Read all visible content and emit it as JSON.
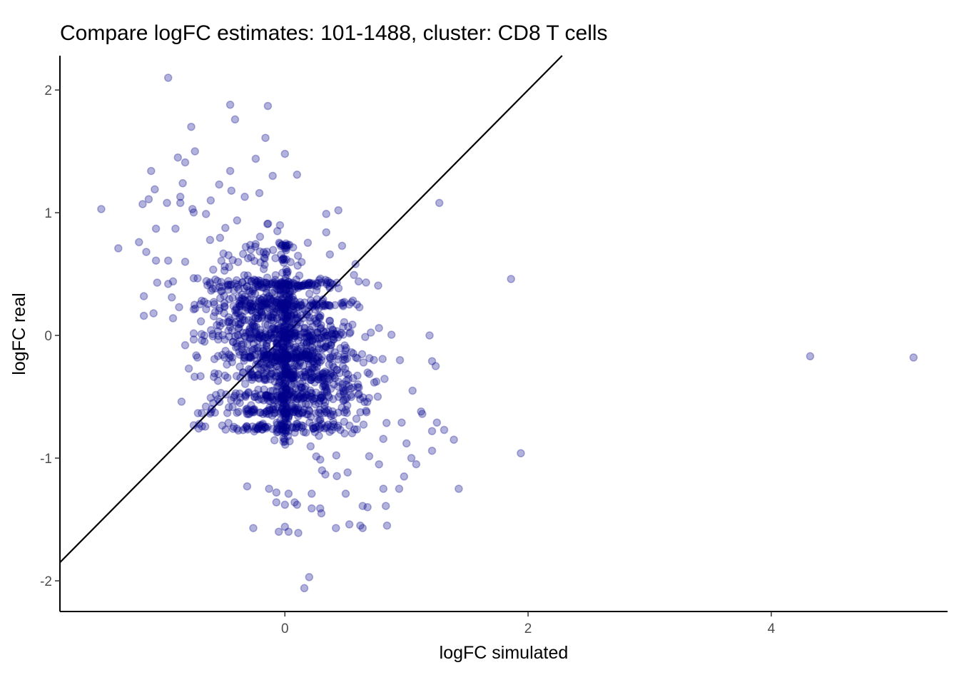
{
  "chart_data": {
    "type": "scatter",
    "title": "Compare logFC estimates: 101-1488, cluster: CD8 T cells",
    "xlabel": "logFC simulated",
    "ylabel": "logFC real",
    "xlim": [
      -1.85,
      5.45
    ],
    "ylim": [
      -2.25,
      2.28
    ],
    "xticks": [
      0,
      2,
      4
    ],
    "yticks": [
      -2,
      -1,
      0,
      1,
      2
    ],
    "xtick_labels": [
      "0",
      "2",
      "4"
    ],
    "ytick_labels": [
      "-2",
      "-1",
      "0",
      "1",
      "2"
    ],
    "grid": false,
    "legend": "none",
    "point_color": "#00008B",
    "reference_line": {
      "slope": 1,
      "intercept": 0
    },
    "series": [
      {
        "points": [
          [
            -0.96,
            2.1
          ],
          [
            -0.45,
            1.88
          ],
          [
            -0.14,
            1.87
          ],
          [
            -0.41,
            1.76
          ],
          [
            -0.77,
            1.7
          ],
          [
            -0.16,
            1.61
          ],
          [
            -0.74,
            1.5
          ],
          [
            0.0,
            1.48
          ],
          [
            -0.88,
            1.45
          ],
          [
            -0.24,
            1.44
          ],
          [
            -0.82,
            1.41
          ],
          [
            -1.1,
            1.34
          ],
          [
            -0.45,
            1.34
          ],
          [
            -0.1,
            1.3
          ],
          [
            0.1,
            1.31
          ],
          [
            -0.84,
            1.24
          ],
          [
            -0.54,
            1.23
          ],
          [
            -1.07,
            1.19
          ],
          [
            -0.44,
            1.18
          ],
          [
            -0.21,
            1.16
          ],
          [
            -0.86,
            1.13
          ],
          [
            -0.33,
            1.13
          ],
          [
            1.27,
            1.08
          ],
          [
            -1.12,
            1.11
          ],
          [
            -0.97,
            1.08
          ],
          [
            -1.17,
            1.07
          ],
          [
            -0.86,
            1.08
          ],
          [
            -0.61,
            1.1
          ],
          [
            -1.51,
            1.03
          ],
          [
            -0.76,
            1.03
          ],
          [
            0.44,
            1.02
          ],
          [
            0.34,
            0.99
          ],
          [
            -1.06,
            0.87
          ],
          [
            -0.9,
            0.87
          ],
          [
            0.34,
            0.84
          ],
          [
            -1.2,
            0.76
          ],
          [
            -1.37,
            0.71
          ],
          [
            -1.14,
            0.68
          ],
          [
            0.47,
            0.73
          ],
          [
            0.37,
            0.66
          ],
          [
            -1.06,
            0.61
          ],
          [
            -0.96,
            0.61
          ],
          [
            -0.82,
            0.6
          ],
          [
            1.86,
            0.46
          ],
          [
            -1.05,
            0.43
          ],
          [
            -0.96,
            0.42
          ],
          [
            -0.92,
            0.44
          ],
          [
            -1.16,
            0.32
          ],
          [
            -0.93,
            0.31
          ],
          [
            -0.87,
            0.23
          ],
          [
            -1.08,
            0.18
          ],
          [
            -1.16,
            0.16
          ],
          [
            -0.92,
            0.14
          ],
          [
            1.19,
            0.0
          ],
          [
            4.32,
            -0.17
          ],
          [
            5.17,
            -0.18
          ],
          [
            1.21,
            -0.21
          ],
          [
            1.24,
            -0.25
          ],
          [
            1.05,
            -0.45
          ],
          [
            1.12,
            -0.62
          ],
          [
            1.13,
            -0.64
          ],
          [
            1.25,
            -0.71
          ],
          [
            0.96,
            -0.71
          ],
          [
            1.21,
            -0.78
          ],
          [
            1.31,
            -0.77
          ],
          [
            1.39,
            -0.85
          ],
          [
            1.21,
            -0.94
          ],
          [
            1.94,
            -0.96
          ],
          [
            1.0,
            -0.88
          ],
          [
            1.04,
            -1.0
          ],
          [
            1.08,
            -1.05
          ],
          [
            0.98,
            -1.15
          ],
          [
            1.43,
            -1.25
          ],
          [
            0.94,
            -1.25
          ],
          [
            0.81,
            -1.25
          ],
          [
            -0.31,
            -1.23
          ],
          [
            -0.13,
            -1.25
          ],
          [
            -0.07,
            -1.28
          ],
          [
            0.03,
            -1.29
          ],
          [
            0.22,
            -1.29
          ],
          [
            0.5,
            -1.29
          ],
          [
            0.08,
            -1.36
          ],
          [
            -0.07,
            -1.36
          ],
          [
            0.1,
            -1.38
          ],
          [
            0.22,
            -1.41
          ],
          [
            0.29,
            -1.41
          ],
          [
            0.64,
            -1.39
          ],
          [
            0.68,
            -1.4
          ],
          [
            0.83,
            -1.39
          ],
          [
            0.3,
            -1.45
          ],
          [
            0.0,
            -1.38
          ],
          [
            -0.26,
            -1.57
          ],
          [
            0.0,
            -1.56
          ],
          [
            0.42,
            -1.57
          ],
          [
            0.53,
            -1.54
          ],
          [
            0.62,
            -1.55
          ],
          [
            0.64,
            -1.57
          ],
          [
            0.84,
            -1.55
          ],
          [
            -0.05,
            -1.6
          ],
          [
            0.03,
            -1.6
          ],
          [
            0.11,
            -1.61
          ],
          [
            0.2,
            -1.97
          ],
          [
            0.16,
            -2.06
          ],
          [
            -0.55,
            -0.52
          ],
          [
            -0.65,
            -0.58
          ],
          [
            -0.85,
            -0.54
          ],
          [
            -0.59,
            -0.55
          ],
          [
            -0.79,
            -0.27
          ],
          [
            -0.72,
            -0.18
          ],
          [
            -0.82,
            -0.08
          ],
          [
            -0.55,
            -0.37
          ],
          [
            -0.6,
            -0.6
          ]
        ]
      }
    ]
  }
}
